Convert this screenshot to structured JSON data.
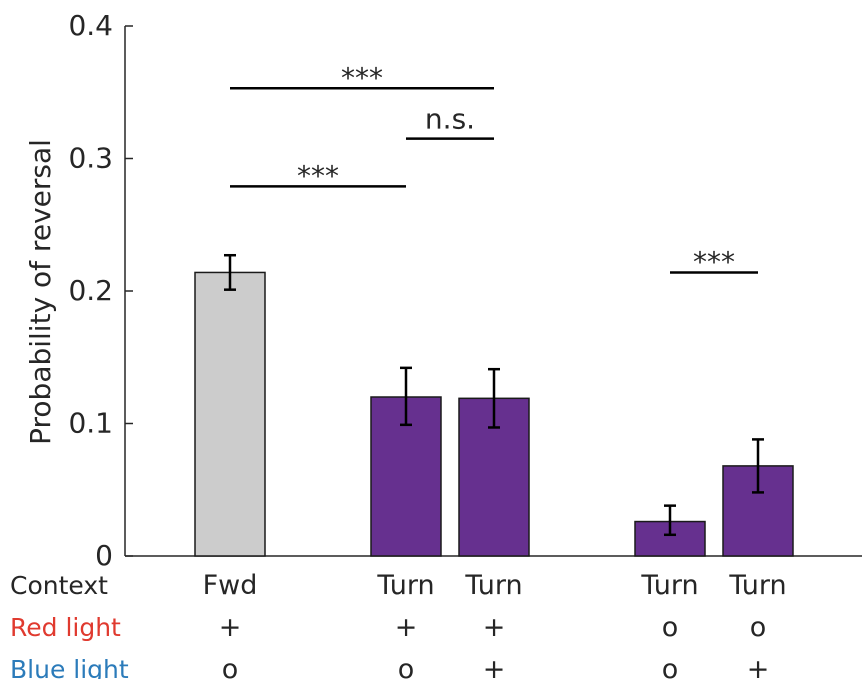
{
  "chart_data": {
    "type": "bar",
    "ylabel": "Probability of reversal",
    "ylim": [
      0,
      0.4
    ],
    "yticks": [
      {
        "value": 0,
        "label": "0"
      },
      {
        "value": 0.1,
        "label": "0.1"
      },
      {
        "value": 0.2,
        "label": "0.2"
      },
      {
        "value": 0.3,
        "label": "0.3"
      },
      {
        "value": 0.4,
        "label": "0.4"
      }
    ],
    "bars": [
      {
        "context": "Fwd",
        "red_light": "+",
        "blue_light": "o",
        "value": 0.214,
        "err_low": 0.201,
        "err_high": 0.227,
        "color": "#cccccc"
      },
      {
        "context": "Turn",
        "red_light": "+",
        "blue_light": "o",
        "value": 0.12,
        "err_low": 0.099,
        "err_high": 0.142,
        "color": "#66308f"
      },
      {
        "context": "Turn",
        "red_light": "+",
        "blue_light": "+",
        "value": 0.119,
        "err_low": 0.097,
        "err_high": 0.141,
        "color": "#66308f"
      },
      {
        "context": "Turn",
        "red_light": "o",
        "blue_light": "o",
        "value": 0.026,
        "err_low": 0.016,
        "err_high": 0.038,
        "color": "#66308f"
      },
      {
        "context": "Turn",
        "red_light": "o",
        "blue_light": "+",
        "value": 0.068,
        "err_low": 0.048,
        "err_high": 0.088,
        "color": "#66308f"
      }
    ],
    "significance": [
      {
        "from": 0,
        "to": 2,
        "y": 0.353,
        "label": "***"
      },
      {
        "from": 1,
        "to": 2,
        "y": 0.315,
        "label": "n.s."
      },
      {
        "from": 0,
        "to": 1,
        "y": 0.279,
        "label": "***"
      },
      {
        "from": 3,
        "to": 4,
        "y": 0.214,
        "label": "***"
      }
    ],
    "row_labels": [
      {
        "key": "context",
        "text": "Context",
        "color": "#262626"
      },
      {
        "key": "red_light",
        "text": "Red light",
        "color": "#e03a2f"
      },
      {
        "key": "blue_light",
        "text": "Blue light",
        "color": "#2b7bba"
      }
    ],
    "grid": false
  }
}
